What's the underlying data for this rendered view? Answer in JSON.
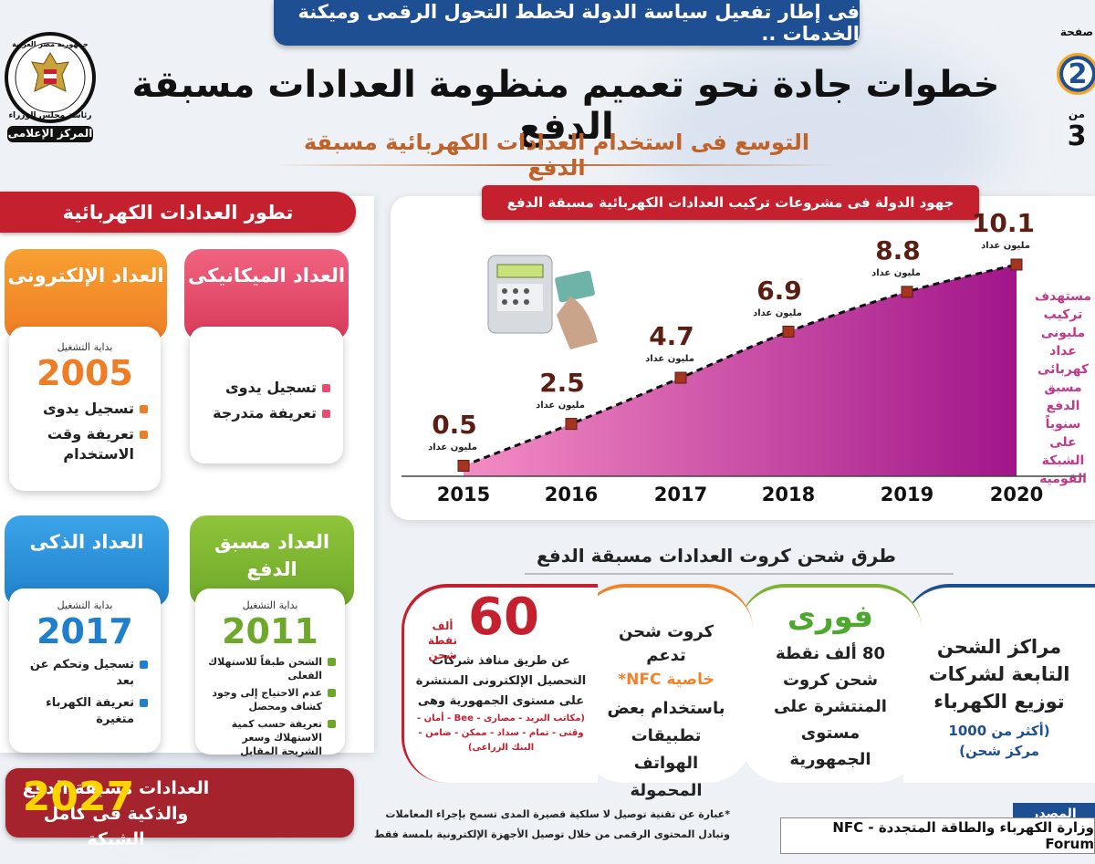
{
  "header": {
    "banner": "فى إطار تفعيل سياسة الدولة لخطط التحول الرقمى وميكنة الخدمات ..",
    "title": "خطوات جادة نحو تعميم منظومة العدادات مسبقة الدفع",
    "subtitle": "التوسع فى استخدام العدادات الكهربائية مسبقة الدفع",
    "page_label": "صفحة",
    "page_current": "2",
    "page_of": "من",
    "page_total": "3",
    "logo_top": "جمهورية مصر العربية",
    "logo_mid": "رئاسة مجلس الوزراء",
    "logo_bottom": "المركز الإعلامى"
  },
  "meters": {
    "title": "تطور العدادات الكهربائية",
    "start_label": "بداية التشغيل",
    "electronic": {
      "name": "العداد الإلكترونى",
      "year": "2005",
      "items": [
        "تسجيل يدوى",
        "تعريفة وقت الاستخدام"
      ],
      "color": "#f0832a"
    },
    "mechanical": {
      "name": "العداد الميكانيكى",
      "items": [
        "تسجيل يدوى",
        "تعريفة متدرجة"
      ],
      "color": "#e94c6d"
    },
    "smart": {
      "name": "العداد الذكى",
      "year": "2017",
      "items": [
        "تسجيل وتحكم عن بعد",
        "تعريفة الكهرباء متغيرة"
      ],
      "color": "#2a8ad6"
    },
    "prepaid": {
      "name": "العداد مسبق الدفع",
      "year": "2011",
      "items": [
        "الشحن طبقاً للاستهلاك الفعلى",
        "عدم الاحتياج إلى وجود كشاف ومحصل",
        "تعريفة حسب كمية الاستهلاك وسعر الشريحة المقابل"
      ],
      "color": "#7cb32f"
    }
  },
  "target_2027": {
    "year": "2027",
    "text": "العدادات مسبقة الدفع والذكية فى كامل الشبكة"
  },
  "chart_data": {
    "type": "area",
    "title": "جهود الدولة فى مشروعات تركيب العدادات الكهربائية مسبقة الدفع",
    "x": [
      "2015",
      "2016",
      "2017",
      "2018",
      "2019",
      "2020"
    ],
    "values": [
      0.5,
      2.5,
      4.7,
      6.9,
      8.8,
      10.1
    ],
    "value_labels": [
      "0.5",
      "2.5",
      "4.7",
      "6.9",
      "8.8",
      "10.1"
    ],
    "unit": "مليون عداد",
    "ylim": [
      0,
      10.1
    ],
    "note": "مستهدف تركيب مليونى عداد كهربائى مسبق الدفع سنوياً على الشبكة القومية"
  },
  "charging": {
    "title": "طرق شحن كروت العدادات مسبقة الدفع",
    "methods": [
      {
        "head": "مراكز الشحن التابعة لشركات توزيع الكهرباء",
        "sub": "(أكثر من 1000 مركز شحن)",
        "color": "#1e4f93"
      },
      {
        "head": "فورى",
        "sub": "80 ألف نقطة شحن كروت المنتشرة على مستوى الجمهورية",
        "color": "#7cb32f"
      },
      {
        "head": "كروت شحن تدعم",
        "accent": "خاصية NFC*",
        "sub": "باستخدام بعض تطبيقات الهواتف المحمولة",
        "color": "#f0832a"
      },
      {
        "big": "60",
        "big_unit": "ألف نقطة شحن",
        "head": "عن طريق منافذ شركات التحصيل الإلكترونى المنتشرة على مستوى الجمهورية وهى",
        "sub": "(مكاتب البريد - مصارى - Bee - أمان - وقتى - تمام - سداد - ممكن - ضامن - البنك الزراعى)",
        "color": "#c5202e"
      }
    ]
  },
  "footnote": "*عبارة عن تقنية توصيل لا سلكية قصيرة المدى تسمح بإجراء المعاملات وتبادل المحتوى الرقمى من خلال توصيل الأجهزة الإلكترونية بلمسة فقط",
  "source": {
    "label": "المصدر",
    "text": "وزارة الكهرباء والطاقة المتجددة - NFC Forum"
  }
}
